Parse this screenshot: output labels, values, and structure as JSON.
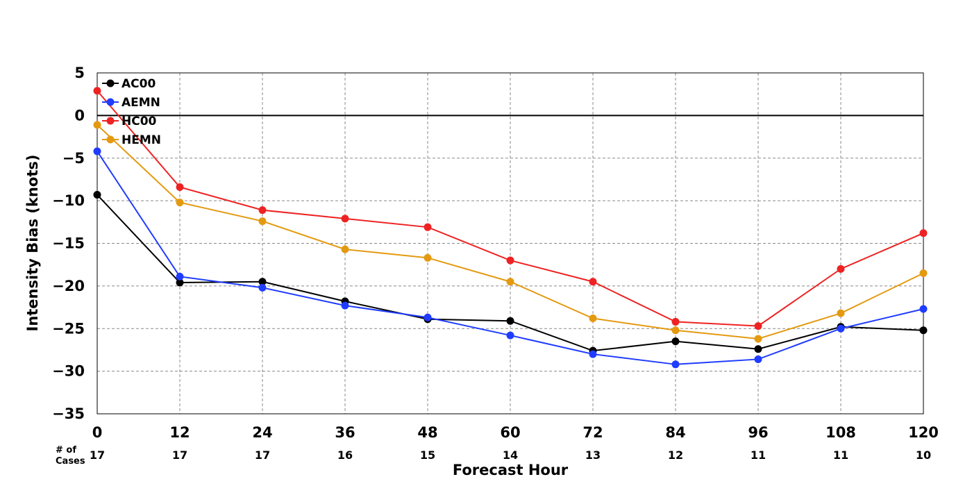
{
  "chart_data": {
    "type": "line",
    "title": "",
    "xlabel": "Forecast Hour",
    "ylabel": "Intensity Bias (knots)",
    "x": [
      0,
      12,
      24,
      36,
      48,
      60,
      72,
      84,
      96,
      108,
      120
    ],
    "xlim": [
      0,
      120
    ],
    "ylim": [
      -35,
      5
    ],
    "yticks": [
      5,
      0,
      -5,
      -10,
      -15,
      -20,
      -25,
      -30,
      -35
    ],
    "yticks_label": [
      "5",
      "0",
      "−5",
      "−10",
      "−15",
      "−20",
      "−25",
      "−30",
      "−35"
    ],
    "grid": true,
    "legend_position": "top-left",
    "cases_label_line1": "# of",
    "cases_label_line2": "Cases",
    "cases": [
      17,
      17,
      17,
      16,
      15,
      14,
      13,
      12,
      11,
      11,
      10
    ],
    "series": [
      {
        "name": "AC00",
        "color": "#000000",
        "values": [
          -9.3,
          -19.6,
          -19.5,
          -21.8,
          -23.9,
          -24.1,
          -27.6,
          -26.5,
          -27.4,
          -24.8,
          -25.2
        ]
      },
      {
        "name": "AEMN",
        "color": "#1f3cff",
        "values": [
          -4.2,
          -18.9,
          -20.2,
          -22.3,
          -23.7,
          -25.8,
          -28.0,
          -29.2,
          -28.6,
          -25.0,
          -22.7
        ]
      },
      {
        "name": "HC00",
        "color": "#ee2222",
        "values": [
          2.9,
          -8.4,
          -11.1,
          -12.1,
          -13.1,
          -17.0,
          -19.5,
          -24.2,
          -24.7,
          -18.0,
          -13.8
        ]
      },
      {
        "name": "HEMN",
        "color": "#e39a10",
        "values": [
          -1.1,
          -10.2,
          -12.4,
          -15.7,
          -16.7,
          -19.5,
          -23.8,
          -25.2,
          -26.2,
          -23.2,
          -18.5
        ]
      }
    ]
  }
}
